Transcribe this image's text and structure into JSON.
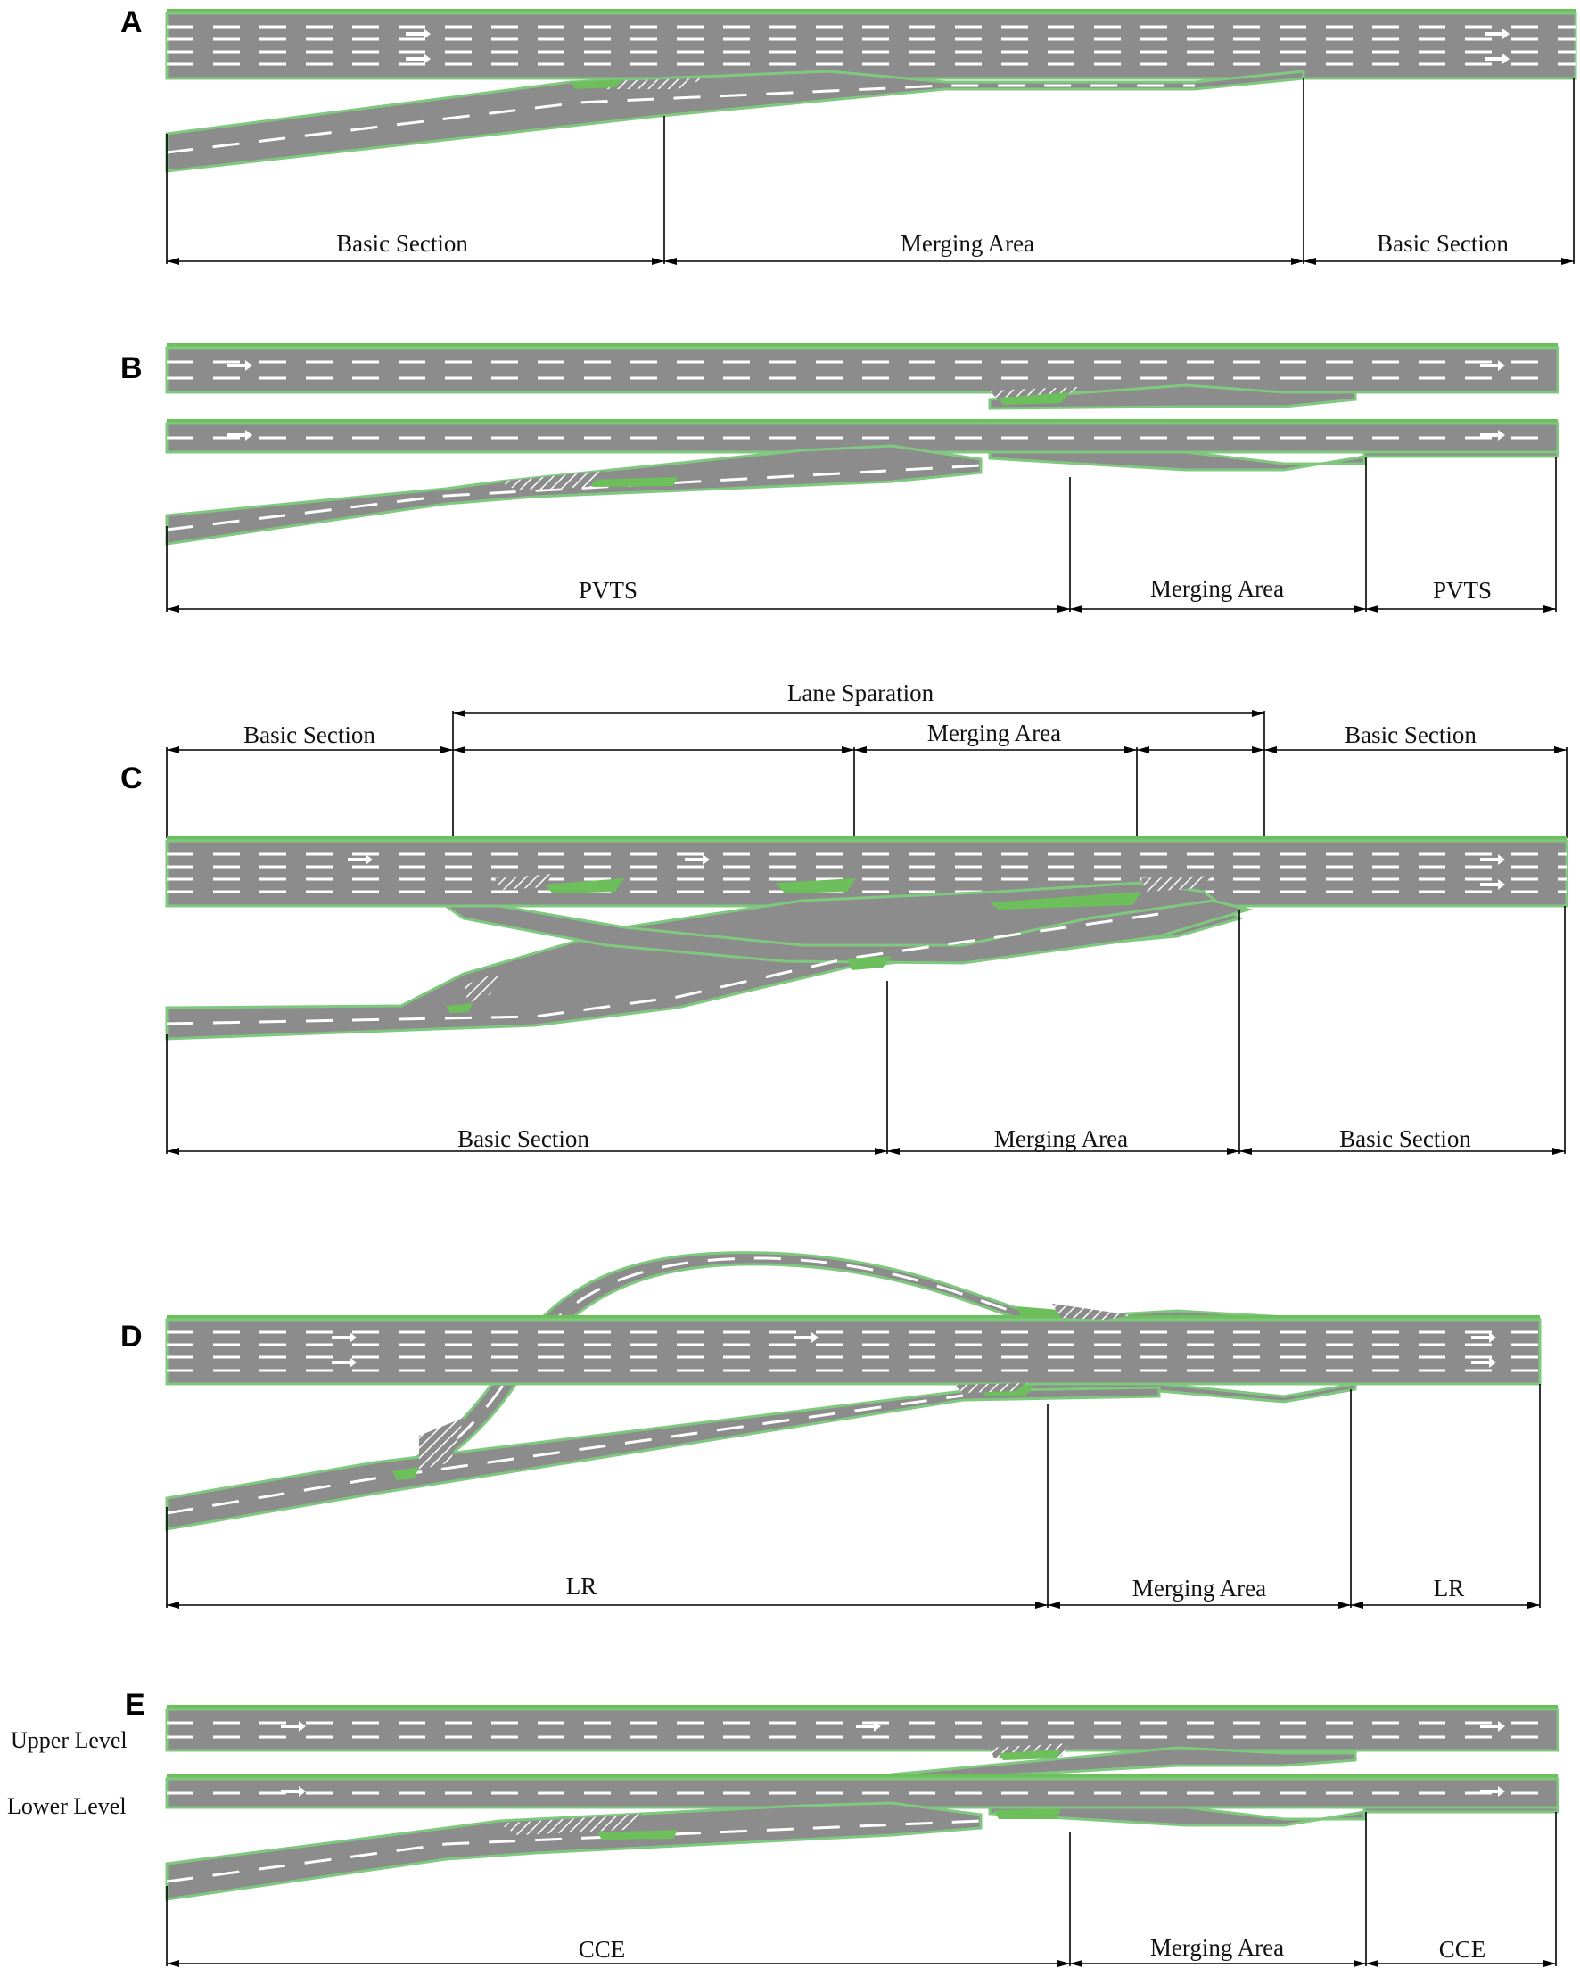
{
  "panels": {
    "A": {
      "letter": "A",
      "labels": [
        "Basic Section",
        "Merging Area",
        "Basic Section"
      ]
    },
    "B": {
      "letter": "B",
      "labels": [
        "PVTS",
        "Merging Area",
        "PVTS"
      ]
    },
    "C": {
      "letter": "C",
      "top_span_label": "Lane Sparation",
      "top_labels": [
        "Basic Section",
        "Merging Area",
        "Basic Section"
      ],
      "bottom_labels": [
        "Basic Section",
        "Merging Area",
        "Basic Section"
      ]
    },
    "D": {
      "letter": "D",
      "labels": [
        "LR",
        "Merging Area",
        "LR"
      ]
    },
    "E": {
      "letter": "E",
      "upper_label": "Upper Level",
      "lower_label": "Lower Level",
      "labels": [
        "CCE",
        "Merging Area",
        "CCE"
      ]
    }
  },
  "colors": {
    "road": "#8c8c8c",
    "median_green": "#6cbf5a",
    "edge_green": "#7fc97f",
    "marking": "#ffffff",
    "dimension": "#000000"
  }
}
